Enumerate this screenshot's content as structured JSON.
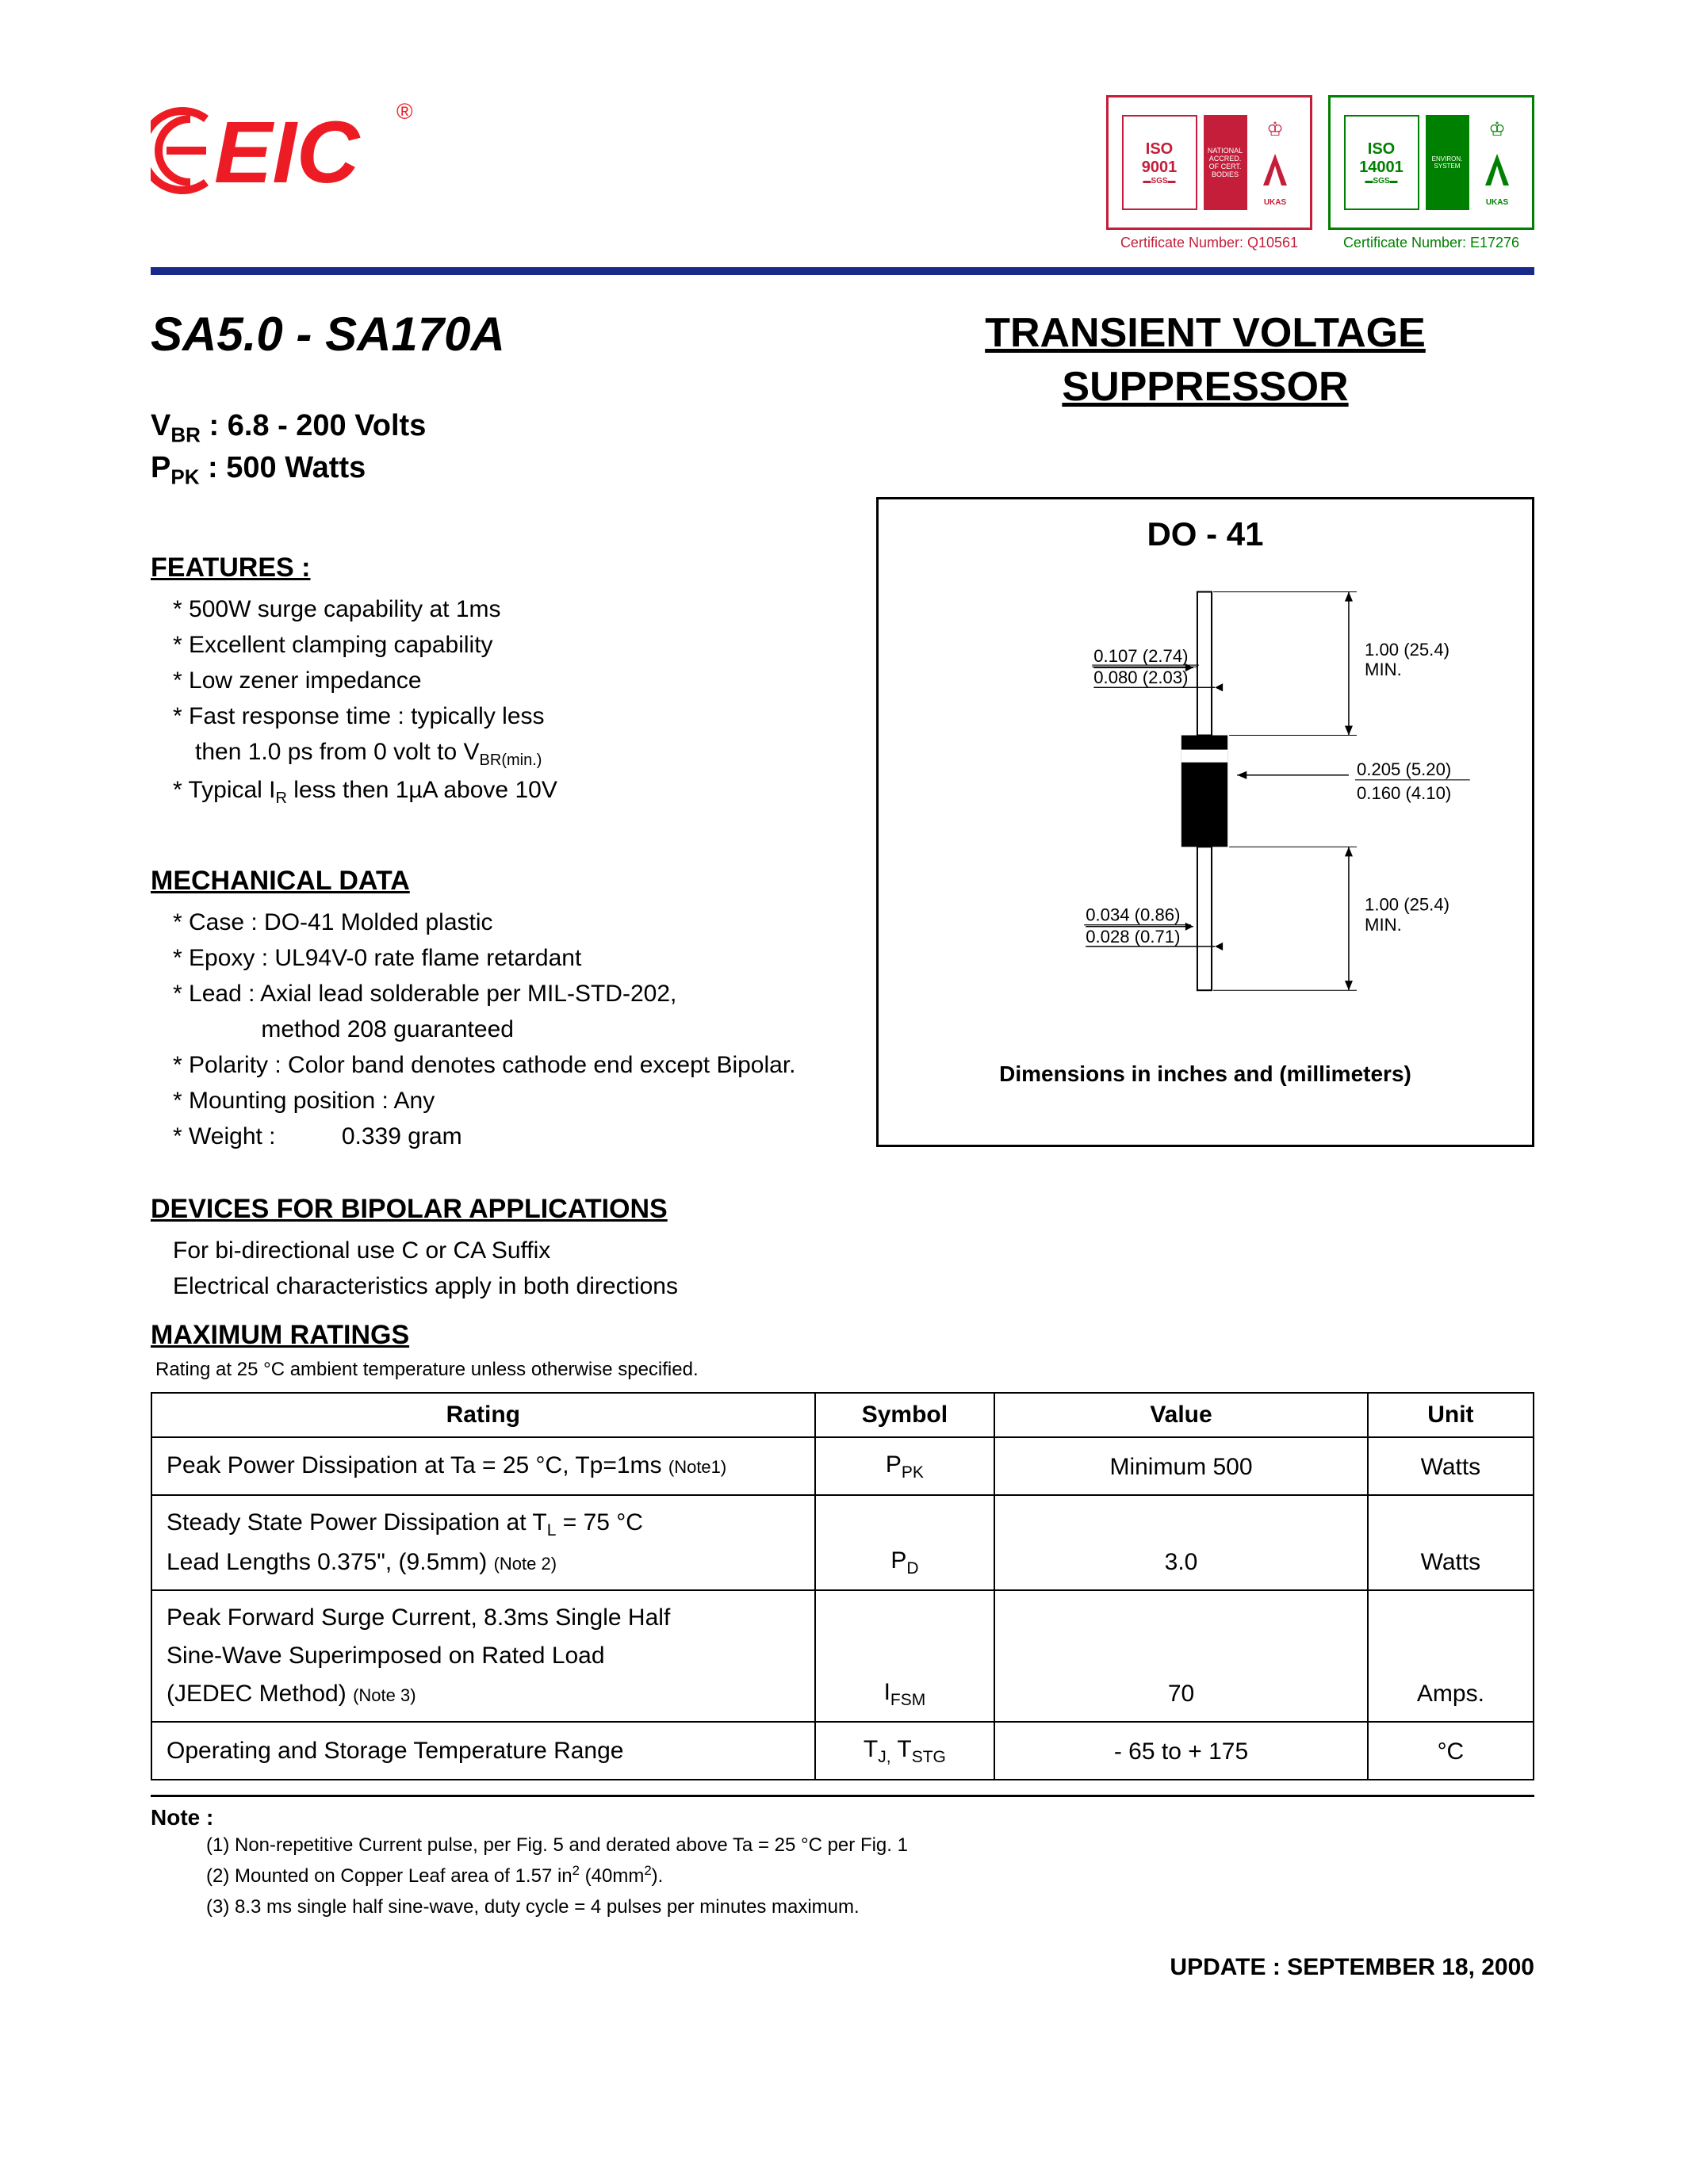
{
  "header": {
    "logo_text": "EIC",
    "logo_reg": "®",
    "certs": [
      {
        "iso": "ISO\n9001",
        "color": "#c41e3a",
        "label": "Certificate Number: Q10561"
      },
      {
        "iso": "ISO\n14001",
        "color": "#008000",
        "label": "Certificate Number: E17276"
      }
    ]
  },
  "title": {
    "part": "SA5.0 - SA170A",
    "product_line1": "TRANSIENT VOLTAGE",
    "product_line2": "SUPPRESSOR"
  },
  "specs": {
    "vbr_label": "BR",
    "vbr_value": ": 6.8 - 200 Volts",
    "ppk_label": "PK",
    "ppk_value": ": 500 Watts"
  },
  "features": {
    "heading": "FEATURES :",
    "items": [
      "* 500W surge capability at 1ms",
      "* Excellent clamping capability",
      "* Low zener impedance",
      "* Fast response time : typically less\n  then 1.0 ps from 0 volt to VBR(min.)",
      "* Typical IR less then 1µA above 10V"
    ]
  },
  "mechanical": {
    "heading": "MECHANICAL DATA",
    "items": [
      "* Case : DO-41 Molded plastic",
      "* Epoxy : UL94V-0 rate flame retardant",
      "* Lead : Axial lead solderable per MIL-STD-202,\n            method 208 guaranteed",
      "* Polarity : Color band denotes cathode end except Bipolar.",
      "* Mounting position : Any",
      "* Weight :  0.339 gram"
    ]
  },
  "bipolar": {
    "heading": "DEVICES FOR BIPOLAR APPLICATIONS",
    "line1": "For bi-directional use C or CA Suffix",
    "line2": "Electrical characteristics apply in both directions"
  },
  "diagram": {
    "title": "DO - 41",
    "caption": "Dimensions in inches and (millimeters)",
    "dims": {
      "lead_dia_top": "0.107 (2.74)",
      "lead_dia_bot": "0.080 (2.03)",
      "lead_len_top": "1.00 (25.4)",
      "lead_len_bot": "MIN.",
      "body_dia_top": "0.205 (5.20)",
      "body_dia_bot": "0.160 (4.10)",
      "wire_dia_top": "0.034 (0.86)",
      "wire_dia_bot": "0.028 (0.71)",
      "lead_len2_top": "1.00 (25.4)",
      "lead_len2_bot": "MIN."
    }
  },
  "ratings": {
    "heading": "MAXIMUM RATINGS",
    "note": "Rating at 25 °C ambient temperature unless otherwise specified.",
    "columns": [
      "Rating",
      "Symbol",
      "Value",
      "Unit"
    ],
    "rows": [
      {
        "rating_html": "Peak Power Dissipation at Ta = 25 °C, Tp=1ms <span class='smallnote'>(Note1)</span>",
        "symbol_html": "P<span class='sub'>PK</span>",
        "value": "Minimum 500",
        "unit": "Watts"
      },
      {
        "rating_html": "Steady State Power Dissipation at T<span class='sub'>L</span> = 75 °C<br>Lead Lengths 0.375\", (9.5mm) <span class='smallnote'>(Note 2)</span>",
        "symbol_html": "P<span class='sub'>D</span>",
        "value": "3.0",
        "unit": "Watts"
      },
      {
        "rating_html": "Peak Forward Surge Current, 8.3ms Single Half<br>Sine-Wave Superimposed on Rated Load<br>(JEDEC Method) <span class='smallnote'>(Note 3)</span>",
        "symbol_html": "I<span class='sub'>FSM</span>",
        "value": "70",
        "unit": "Amps."
      },
      {
        "rating_html": "Operating and Storage Temperature Range",
        "symbol_html": "T<span class='sub'>J,</span> T<span class='sub'>STG</span>",
        "value": "- 65 to + 175",
        "unit": "°C"
      }
    ]
  },
  "notes": {
    "heading": "Note :",
    "items": [
      "(1) Non-repetitive Current pulse, per Fig. 5 and derated above Ta = 25 °C per Fig. 1",
      "(2) Mounted on Copper Leaf area of 1.57 in² (40mm²).",
      "(3) 8.3 ms single half sine-wave, duty cycle = 4 pulses per minutes maximum."
    ]
  },
  "footer": "UPDATE : SEPTEMBER 18, 2000"
}
